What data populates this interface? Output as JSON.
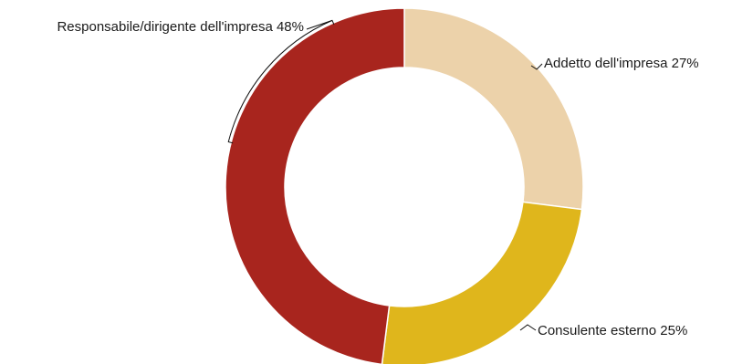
{
  "chart_data": {
    "type": "pie",
    "donut": true,
    "categories": [
      "Addetto dell'impresa",
      "Consulente esterno",
      "Responsabile/dirigente dell'impresa"
    ],
    "values": [
      27,
      25,
      48
    ],
    "unit": "%",
    "colors": [
      "#ecd2aa",
      "#dfb61c",
      "#a8251e"
    ],
    "labels": [
      "Addetto dell'impresa 27%",
      "Consulente esterno 25%",
      "Responsabile/dirigente dell'impresa 48%"
    ],
    "legend": "none"
  }
}
